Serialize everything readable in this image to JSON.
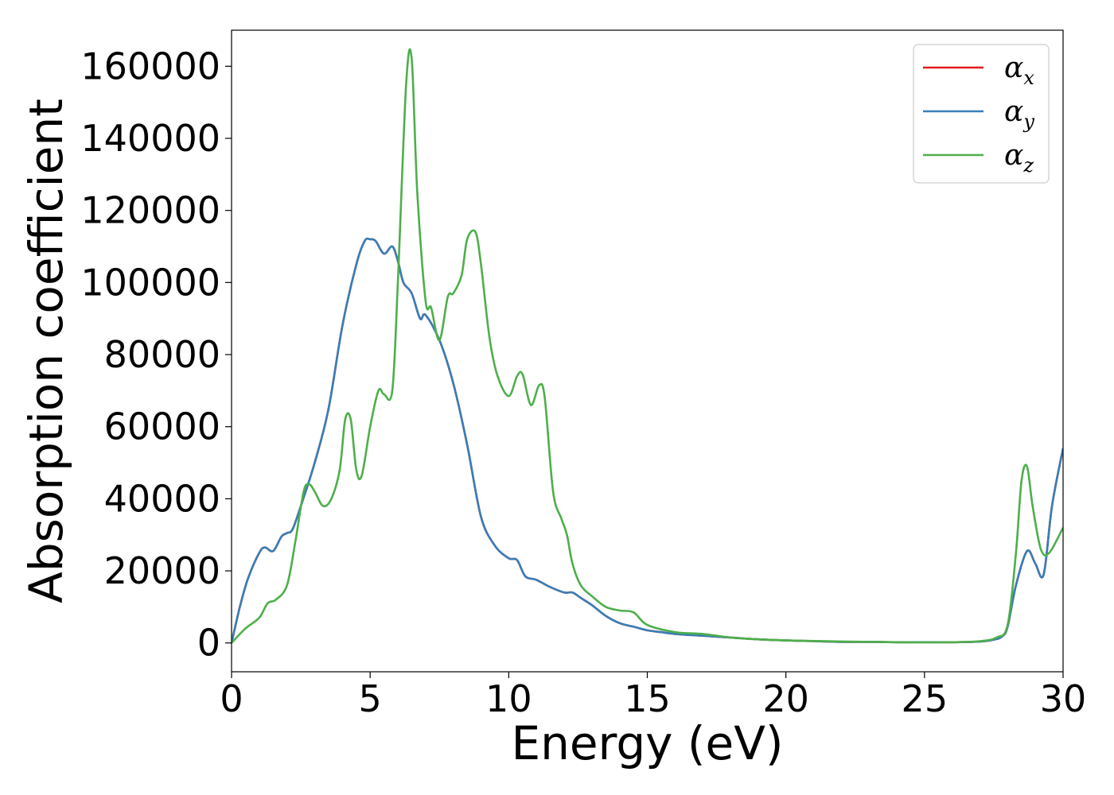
{
  "chart_data": {
    "type": "line",
    "xlabel": "Energy (eV)",
    "ylabel": "Absorption coefficient",
    "xlim": [
      0,
      30
    ],
    "ylim": [
      -8000,
      170000
    ],
    "xticks": [
      0,
      5,
      10,
      15,
      20,
      25,
      30
    ],
    "yticks": [
      0,
      20000,
      40000,
      60000,
      80000,
      100000,
      120000,
      140000,
      160000
    ],
    "xtick_labels": [
      "0",
      "5",
      "10",
      "15",
      "20",
      "25",
      "30"
    ],
    "ytick_labels": [
      "0",
      "20000",
      "40000",
      "60000",
      "80000",
      "100000",
      "120000",
      "140000",
      "160000"
    ],
    "grid": false,
    "legend_position": "top-right",
    "series": [
      {
        "name": "αx",
        "symbol": "α",
        "subscript": "x",
        "color": "#e41a1c",
        "x": [
          0,
          0.3,
          0.6,
          1.0,
          1.2,
          1.5,
          1.8,
          2.0,
          2.2,
          2.5,
          3.0,
          3.5,
          4.0,
          4.5,
          4.8,
          5.0,
          5.2,
          5.5,
          5.8,
          6.0,
          6.2,
          6.5,
          6.8,
          7.0,
          7.5,
          8.0,
          8.5,
          9.0,
          9.5,
          10.0,
          10.3,
          10.6,
          11.0,
          11.5,
          12.0,
          12.3,
          12.6,
          13.0,
          13.5,
          14.0,
          14.5,
          15.0,
          15.5,
          16.0,
          17.0,
          18.0,
          19.0,
          20.0,
          21.0,
          22.0,
          23.0,
          24.0,
          25.0,
          26.0,
          27.0,
          27.5,
          27.8,
          28.0,
          28.3,
          28.7,
          29.0,
          29.3,
          29.6,
          30.0
        ],
        "y": [
          0,
          10000,
          18000,
          25000,
          26500,
          25500,
          29500,
          30500,
          31500,
          38000,
          50000,
          65000,
          88000,
          105000,
          111500,
          112000,
          111500,
          108000,
          110000,
          106000,
          100000,
          97000,
          90000,
          91000,
          84000,
          72000,
          55000,
          35000,
          27000,
          23500,
          23000,
          18500,
          17500,
          15500,
          14000,
          14000,
          12500,
          10500,
          7500,
          5500,
          4500,
          3500,
          3000,
          2500,
          2000,
          1500,
          1000,
          700,
          500,
          300,
          300,
          200,
          200,
          200,
          400,
          900,
          1800,
          4500,
          16000,
          25500,
          22000,
          19000,
          38000,
          54000
        ]
      },
      {
        "name": "αy",
        "symbol": "α",
        "subscript": "y",
        "color": "#377eb8",
        "x": [
          0,
          0.3,
          0.6,
          1.0,
          1.2,
          1.5,
          1.8,
          2.0,
          2.2,
          2.5,
          3.0,
          3.5,
          4.0,
          4.5,
          4.8,
          5.0,
          5.2,
          5.5,
          5.8,
          6.0,
          6.2,
          6.5,
          6.8,
          7.0,
          7.5,
          8.0,
          8.5,
          9.0,
          9.5,
          10.0,
          10.3,
          10.6,
          11.0,
          11.5,
          12.0,
          12.3,
          12.6,
          13.0,
          13.5,
          14.0,
          14.5,
          15.0,
          15.5,
          16.0,
          17.0,
          18.0,
          19.0,
          20.0,
          21.0,
          22.0,
          23.0,
          24.0,
          25.0,
          26.0,
          27.0,
          27.5,
          27.8,
          28.0,
          28.3,
          28.7,
          29.0,
          29.3,
          29.6,
          30.0
        ],
        "y": [
          0,
          10000,
          18000,
          25000,
          26500,
          25500,
          29500,
          30500,
          31500,
          38000,
          50000,
          65000,
          88000,
          105000,
          111500,
          112000,
          111500,
          108000,
          110000,
          106000,
          100000,
          97000,
          90000,
          91000,
          84000,
          72000,
          55000,
          35000,
          27000,
          23500,
          23000,
          18500,
          17500,
          15500,
          14000,
          14000,
          12500,
          10500,
          7500,
          5500,
          4500,
          3500,
          3000,
          2500,
          2000,
          1500,
          1000,
          700,
          500,
          300,
          300,
          200,
          200,
          200,
          400,
          900,
          1800,
          4500,
          16000,
          25500,
          22000,
          19000,
          38000,
          54000
        ]
      },
      {
        "name": "αz",
        "symbol": "α",
        "subscript": "z",
        "color": "#4daf4a",
        "x": [
          0,
          0.5,
          1.0,
          1.3,
          1.6,
          2.0,
          2.3,
          2.6,
          2.8,
          3.0,
          3.3,
          3.6,
          3.9,
          4.1,
          4.3,
          4.5,
          4.7,
          5.0,
          5.3,
          5.5,
          5.8,
          6.0,
          6.3,
          6.5,
          6.7,
          7.0,
          7.2,
          7.5,
          7.8,
          8.0,
          8.3,
          8.5,
          8.8,
          9.0,
          9.3,
          9.6,
          10.0,
          10.3,
          10.5,
          10.8,
          11.1,
          11.3,
          11.6,
          11.9,
          12.1,
          12.3,
          12.6,
          13.0,
          13.5,
          14.0,
          14.5,
          15.0,
          16.0,
          17.0,
          18.0,
          19.0,
          20.0,
          22.0,
          24.0,
          26.0,
          27.0,
          27.6,
          28.0,
          28.3,
          28.5,
          28.7,
          28.9,
          29.2,
          29.5,
          30.0
        ],
        "y": [
          0,
          4000,
          7000,
          11000,
          12000,
          16000,
          28000,
          42000,
          44000,
          42000,
          38000,
          40000,
          48000,
          62000,
          62000,
          48000,
          46500,
          60000,
          70000,
          69000,
          70000,
          100000,
          155000,
          162000,
          125000,
          95000,
          93000,
          84000,
          96000,
          97000,
          102000,
          112000,
          114000,
          105000,
          85000,
          74000,
          68500,
          74000,
          74500,
          66000,
          71500,
          68000,
          42000,
          34500,
          30000,
          22000,
          16000,
          13000,
          10000,
          9000,
          8500,
          5000,
          3000,
          2500,
          1500,
          1000,
          700,
          400,
          200,
          200,
          500,
          1500,
          5000,
          25000,
          45000,
          49000,
          38000,
          26000,
          25000,
          32000
        ]
      }
    ]
  }
}
